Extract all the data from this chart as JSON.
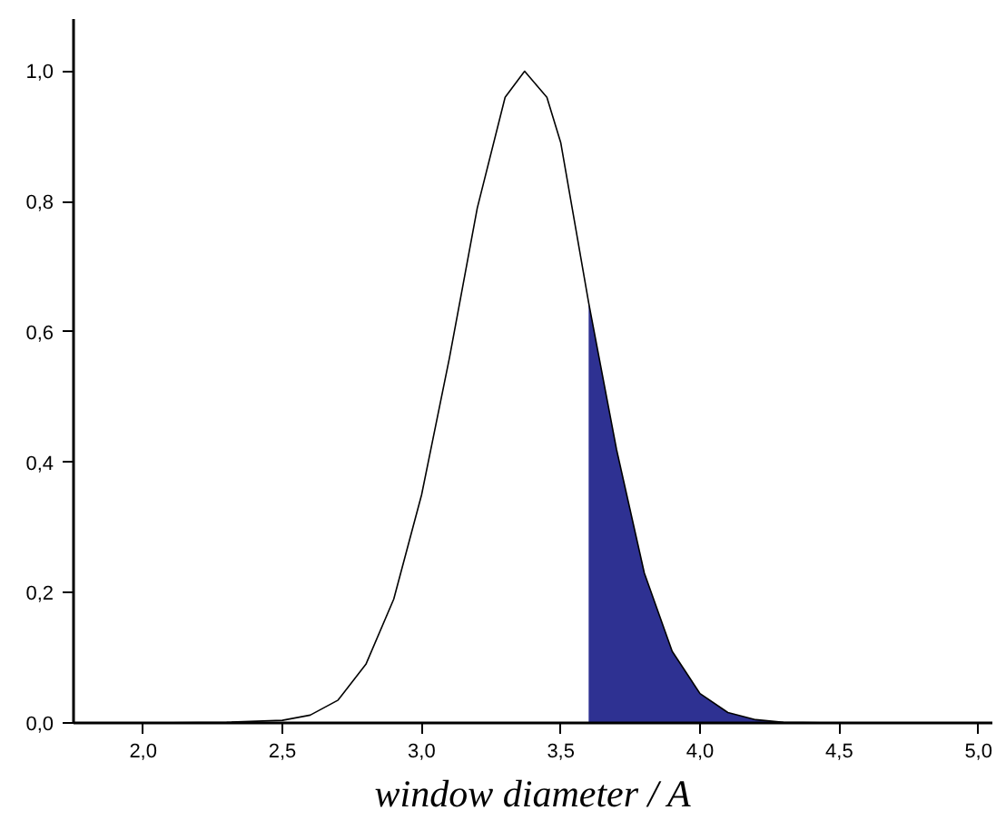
{
  "chart_data": {
    "type": "line",
    "xlabel": "window diameter / A",
    "xlim": [
      1.75,
      5.05
    ],
    "ylim": [
      0,
      1.08
    ],
    "xticks": [
      {
        "value": 2.0,
        "label": "2,0"
      },
      {
        "value": 2.5,
        "label": "2,5"
      },
      {
        "value": 3.0,
        "label": "3,0"
      },
      {
        "value": 3.5,
        "label": "3,5"
      },
      {
        "value": 4.0,
        "label": "4,0"
      },
      {
        "value": 4.5,
        "label": "4,5"
      },
      {
        "value": 5.0,
        "label": "5,0"
      }
    ],
    "yticks": [
      {
        "value": 0.0,
        "label": "0,0"
      },
      {
        "value": 0.2,
        "label": "0,2"
      },
      {
        "value": 0.4,
        "label": "0,4"
      },
      {
        "value": 0.6,
        "label": "0,6"
      },
      {
        "value": 0.8,
        "label": "0,8"
      },
      {
        "value": 1.0,
        "label": "1,0"
      }
    ],
    "grid": false,
    "series": [
      {
        "color": "#000000",
        "x": [
          1.75,
          2.0,
          2.3,
          2.5,
          2.6,
          2.7,
          2.8,
          2.9,
          3.0,
          3.1,
          3.2,
          3.3,
          3.37,
          3.45,
          3.5,
          3.6,
          3.7,
          3.8,
          3.9,
          4.0,
          4.1,
          4.2,
          4.3,
          4.5,
          5.05
        ],
        "values": [
          0,
          0,
          0.001,
          0.004,
          0.012,
          0.035,
          0.09,
          0.19,
          0.35,
          0.56,
          0.79,
          0.96,
          1.0,
          0.96,
          0.89,
          0.645,
          0.42,
          0.23,
          0.11,
          0.045,
          0.016,
          0.005,
          0.001,
          0,
          0
        ]
      },
      {
        "type": "area",
        "color": "#2e3192",
        "x": [
          3.6,
          3.7,
          3.8,
          3.9,
          4.0,
          4.1,
          4.2,
          4.3,
          4.5
        ],
        "values": [
          0.645,
          0.42,
          0.23,
          0.11,
          0.045,
          0.016,
          0.005,
          0.001,
          0
        ]
      }
    ]
  }
}
